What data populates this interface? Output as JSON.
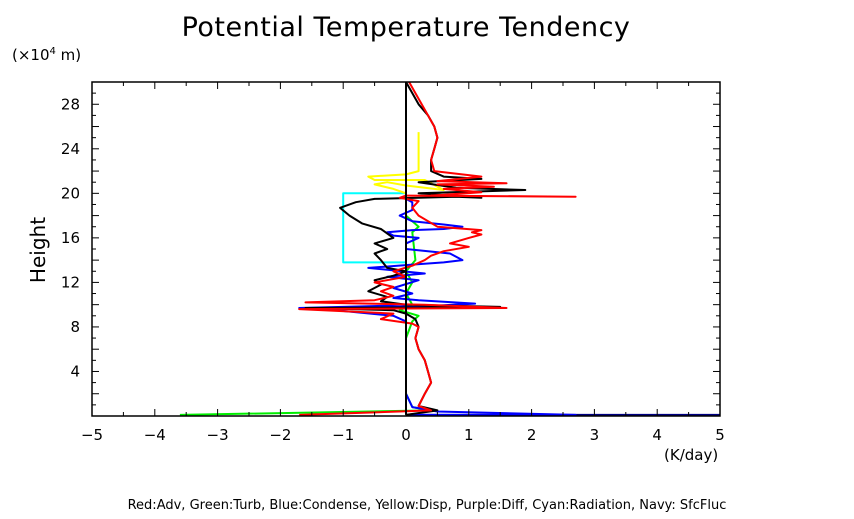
{
  "chart_data": {
    "type": "line",
    "title": "Potential Temperature Tendency",
    "ylabel": "Height",
    "y_unit_prefix": "(×10",
    "y_unit_exp": "4",
    "y_unit_suffix": " m)",
    "xlabel": "(K/day)",
    "xlim": [
      -5,
      5
    ],
    "ylim": [
      0,
      30
    ],
    "xticks": [
      -5,
      -4,
      -3,
      -2,
      -1,
      0,
      1,
      2,
      3,
      4,
      5
    ],
    "yticks": [
      4,
      8,
      12,
      16,
      20,
      24,
      28
    ],
    "legend_text": "Red:Adv, Green:Turb, Blue:Condense, Yellow:Disp, Purple:Diff, Cyan:Radiation, Navy: SfcFluc",
    "grid": false,
    "colors": {
      "red": "#ff0000",
      "green": "#00ee00",
      "blue": "#0000ff",
      "yellow": "#ffff00",
      "cyan": "#00ffff",
      "navy": "#000080",
      "black": "#000000"
    },
    "series": [
      {
        "color": "#00ffff",
        "points": [
          [
            0,
            0.1
          ],
          [
            0,
            13.8
          ],
          [
            -1,
            13.8
          ],
          [
            -1,
            20
          ],
          [
            0,
            20
          ],
          [
            0,
            30
          ]
        ]
      },
      {
        "color": "#ffff00",
        "points": [
          [
            0,
            0.1
          ],
          [
            0,
            20
          ],
          [
            -0.2,
            20.4
          ],
          [
            -0.5,
            20.8
          ],
          [
            -0.3,
            21
          ],
          [
            0,
            20.7
          ],
          [
            0.6,
            20.3
          ],
          [
            0.3,
            21.2
          ],
          [
            -0.5,
            21.2
          ],
          [
            -0.6,
            21.5
          ],
          [
            0,
            21.7
          ],
          [
            0.2,
            22
          ],
          [
            0.2,
            25.5
          ]
        ]
      },
      {
        "color": "#00ee00",
        "points": [
          [
            -3.6,
            0.1
          ],
          [
            0.4,
            0.5
          ],
          [
            0.1,
            0.8
          ],
          [
            0,
            2
          ],
          [
            0,
            5
          ],
          [
            0,
            7
          ],
          [
            0.1,
            8.5
          ],
          [
            0.2,
            9
          ],
          [
            -0.1,
            9.5
          ],
          [
            0.1,
            10
          ],
          [
            0,
            11
          ],
          [
            0.1,
            12
          ],
          [
            0,
            13
          ],
          [
            0.15,
            14
          ],
          [
            0.1,
            16.5
          ],
          [
            0.2,
            17
          ],
          [
            0,
            18
          ],
          [
            0,
            30
          ]
        ]
      },
      {
        "color": "#000080",
        "points": [
          [
            0,
            0.1
          ],
          [
            5,
            0.1
          ]
        ]
      },
      {
        "color": "#0000ff",
        "points": [
          [
            0,
            0.1
          ],
          [
            2.7,
            0.1
          ],
          [
            0.5,
            0.4
          ],
          [
            0.1,
            0.8
          ],
          [
            0,
            2
          ],
          [
            0,
            8.5
          ],
          [
            -0.2,
            9
          ],
          [
            -1.3,
            9.6
          ],
          [
            -1.7,
            9.7
          ],
          [
            -0.3,
            9.9
          ],
          [
            0.1,
            9.8
          ],
          [
            1.1,
            10.1
          ],
          [
            0.2,
            10.4
          ],
          [
            -0.2,
            10.6
          ],
          [
            0.1,
            11
          ],
          [
            -0.2,
            11.5
          ],
          [
            0.2,
            12.2
          ],
          [
            -0.3,
            12.5
          ],
          [
            0.3,
            12.8
          ],
          [
            -0.6,
            13.3
          ],
          [
            0.1,
            13.6
          ],
          [
            0.6,
            13.8
          ],
          [
            0.9,
            14
          ],
          [
            0.7,
            14.6
          ],
          [
            0,
            15
          ],
          [
            0,
            15.5
          ],
          [
            0.2,
            16
          ],
          [
            -0.2,
            16.2
          ],
          [
            -0.3,
            16.5
          ],
          [
            0.1,
            16.7
          ],
          [
            0.6,
            16.8
          ],
          [
            0.9,
            17
          ],
          [
            0.6,
            17.2
          ],
          [
            0.1,
            17.5
          ],
          [
            -0.1,
            18
          ],
          [
            0.1,
            18.5
          ],
          [
            0.1,
            19.2
          ],
          [
            0,
            19.5
          ],
          [
            0,
            30
          ]
        ]
      },
      {
        "color": "#000000",
        "points": [
          [
            0,
            0.1
          ],
          [
            0.5,
            0.5
          ],
          [
            0.2,
            0.9
          ],
          [
            0.3,
            2
          ],
          [
            0.4,
            3
          ],
          [
            0.35,
            4
          ],
          [
            0.3,
            5
          ],
          [
            0.2,
            6
          ],
          [
            0.15,
            7
          ],
          [
            0.2,
            8
          ],
          [
            0.15,
            8.7
          ],
          [
            0,
            9.2
          ],
          [
            -0.2,
            9.5
          ],
          [
            -1.6,
            9.7
          ],
          [
            1.5,
            9.8
          ],
          [
            0,
            10
          ],
          [
            -0.4,
            10.3
          ],
          [
            -0.3,
            10.7
          ],
          [
            -0.6,
            11.2
          ],
          [
            -0.4,
            11.8
          ],
          [
            -0.5,
            12.2
          ],
          [
            -0.2,
            12.6
          ],
          [
            0,
            13
          ],
          [
            -0.3,
            13.3
          ],
          [
            -0.4,
            14
          ],
          [
            -0.5,
            14.6
          ],
          [
            -0.3,
            15
          ],
          [
            -0.5,
            15.5
          ],
          [
            -0.2,
            16
          ],
          [
            -0.4,
            16.8
          ],
          [
            -0.7,
            17.3
          ],
          [
            -0.9,
            18
          ],
          [
            -1.05,
            18.7
          ],
          [
            -0.8,
            19.2
          ],
          [
            -0.5,
            19.5
          ],
          [
            0.8,
            19.7
          ],
          [
            1.2,
            19.6
          ],
          [
            0.2,
            20
          ],
          [
            1.9,
            20.3
          ],
          [
            0.8,
            20.5
          ],
          [
            0.2,
            21
          ],
          [
            1.2,
            21.3
          ],
          [
            0.6,
            21.5
          ],
          [
            0.4,
            22
          ],
          [
            0.4,
            23
          ],
          [
            0.45,
            24
          ],
          [
            0.5,
            25
          ],
          [
            0.45,
            26
          ],
          [
            0.35,
            27
          ],
          [
            0.2,
            28
          ],
          [
            0.1,
            29
          ],
          [
            0,
            30
          ]
        ]
      },
      {
        "color": "#ff0000",
        "points": [
          [
            -1.7,
            0.1
          ],
          [
            0.4,
            0.5
          ],
          [
            0.2,
            0.9
          ],
          [
            0.3,
            2
          ],
          [
            0.4,
            3
          ],
          [
            0.35,
            4
          ],
          [
            0.3,
            5
          ],
          [
            0.2,
            6
          ],
          [
            0.15,
            7
          ],
          [
            0.2,
            8
          ],
          [
            0.1,
            8.3
          ],
          [
            -0.4,
            8.7
          ],
          [
            -0.2,
            9.2
          ],
          [
            -1.7,
            9.6
          ],
          [
            1.6,
            9.7
          ],
          [
            0.3,
            10
          ],
          [
            -1.6,
            10.2
          ],
          [
            -0.5,
            10.4
          ],
          [
            -0.2,
            10.8
          ],
          [
            -0.4,
            11.2
          ],
          [
            -0.2,
            11.6
          ],
          [
            -0.5,
            12
          ],
          [
            0,
            12.5
          ],
          [
            -0.2,
            13
          ],
          [
            0.1,
            13.5
          ],
          [
            0.3,
            14
          ],
          [
            0.4,
            14.4
          ],
          [
            0.6,
            14.8
          ],
          [
            1,
            15.2
          ],
          [
            0.7,
            15.5
          ],
          [
            1,
            16
          ],
          [
            1.2,
            16.3
          ],
          [
            1.05,
            16.5
          ],
          [
            1.2,
            16.7
          ],
          [
            0.5,
            17
          ],
          [
            0.2,
            18
          ],
          [
            0.1,
            18.7
          ],
          [
            0.2,
            19.3
          ],
          [
            -0.1,
            19.6
          ],
          [
            0,
            19.8
          ],
          [
            2.7,
            19.7
          ],
          [
            0.4,
            19.8
          ],
          [
            1.2,
            20.1
          ],
          [
            0.6,
            20.4
          ],
          [
            1.4,
            20.6
          ],
          [
            0.5,
            20.8
          ],
          [
            1.6,
            20.9
          ],
          [
            0.5,
            21.1
          ],
          [
            1.2,
            21.5
          ],
          [
            0.45,
            22
          ],
          [
            0.4,
            23
          ],
          [
            0.45,
            24
          ],
          [
            0.5,
            25
          ],
          [
            0.45,
            26
          ],
          [
            0.35,
            27
          ],
          [
            0.25,
            28
          ],
          [
            0.15,
            29
          ],
          [
            0.05,
            30
          ]
        ]
      },
      {
        "color": "#000000",
        "points": [
          [
            0,
            0.1
          ],
          [
            0,
            30
          ]
        ]
      }
    ]
  }
}
